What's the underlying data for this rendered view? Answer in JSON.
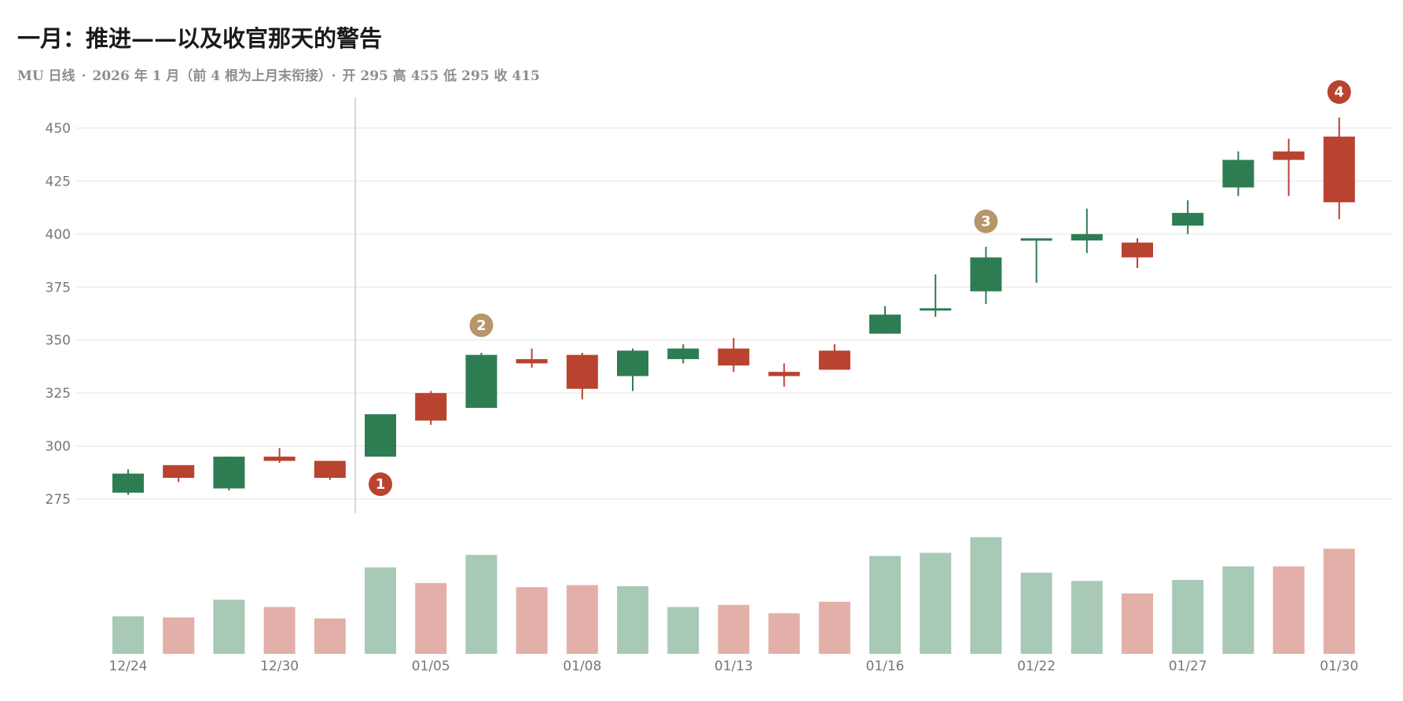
{
  "header": {
    "title": "一月：推进——以及收官那天的警告",
    "subtitle_parts": [
      "MU 日线",
      "2026 年 1 月（前 4 根为上月末衔接）",
      "开 295 高 455 低 295 收 415"
    ],
    "separator": "·"
  },
  "colors": {
    "up": "#2e7d52",
    "down": "#b8432f",
    "up_volume": "#a7c9b6",
    "down_volume": "#e2b0a8",
    "marker_red": "#b8432f",
    "marker_tan": "#b8956a",
    "grid": "#e3e3e3",
    "axis_text": "#777777",
    "divider": "#d6d6d6"
  },
  "chart_data": {
    "type": "candlestick",
    "y_ticks": [
      275,
      300,
      325,
      350,
      375,
      400,
      425,
      450
    ],
    "ylim": [
      270,
      463
    ],
    "x_tick_labels": [
      {
        "index": 0,
        "label": "12/24"
      },
      {
        "index": 3,
        "label": "12/30"
      },
      {
        "index": 6,
        "label": "01/05"
      },
      {
        "index": 9,
        "label": "01/08"
      },
      {
        "index": 12,
        "label": "01/13"
      },
      {
        "index": 15,
        "label": "01/16"
      },
      {
        "index": 18,
        "label": "01/22"
      },
      {
        "index": 21,
        "label": "01/27"
      },
      {
        "index": 24,
        "label": "01/30"
      }
    ],
    "divider_after_index": 4,
    "candles": [
      {
        "open": 278,
        "high": 289,
        "low": 277,
        "close": 287,
        "volume": 18
      },
      {
        "open": 291,
        "high": 291,
        "low": 283,
        "close": 285,
        "volume": 17.5
      },
      {
        "open": 280,
        "high": 295,
        "low": 279,
        "close": 295,
        "volume": 26
      },
      {
        "open": 295,
        "high": 299,
        "low": 292,
        "close": 293,
        "volume": 22.5
      },
      {
        "open": 293,
        "high": 293,
        "low": 284,
        "close": 285,
        "volume": 17
      },
      {
        "open": 295,
        "high": 315,
        "low": 295,
        "close": 315,
        "volume": 41.5
      },
      {
        "open": 325,
        "high": 326,
        "low": 310,
        "close": 312,
        "volume": 34
      },
      {
        "open": 318,
        "high": 344,
        "low": 318,
        "close": 343,
        "volume": 47.5
      },
      {
        "open": 341,
        "high": 346,
        "low": 337,
        "close": 339,
        "volume": 32
      },
      {
        "open": 343,
        "high": 344,
        "low": 322,
        "close": 327,
        "volume": 33
      },
      {
        "open": 333,
        "high": 346,
        "low": 326,
        "close": 345,
        "volume": 32.5
      },
      {
        "open": 341,
        "high": 348,
        "low": 339,
        "close": 346,
        "volume": 22.5
      },
      {
        "open": 346,
        "high": 351,
        "low": 335,
        "close": 338,
        "volume": 23.5
      },
      {
        "open": 335,
        "high": 339,
        "low": 328,
        "close": 333,
        "volume": 19.5
      },
      {
        "open": 345,
        "high": 348,
        "low": 336,
        "close": 336,
        "volume": 25
      },
      {
        "open": 353,
        "high": 366,
        "low": 353,
        "close": 362,
        "volume": 47
      },
      {
        "open": 365,
        "high": 381,
        "low": 361,
        "close": 365,
        "volume": 48.5
      },
      {
        "open": 373,
        "high": 394,
        "low": 367,
        "close": 389,
        "volume": 56
      },
      {
        "open": 397,
        "high": 398,
        "low": 377,
        "close": 398,
        "volume": 39
      },
      {
        "open": 397,
        "high": 412,
        "low": 391,
        "close": 400,
        "volume": 35
      },
      {
        "open": 396,
        "high": 398,
        "low": 384,
        "close": 389,
        "volume": 29
      },
      {
        "open": 404,
        "high": 416,
        "low": 400,
        "close": 410,
        "volume": 35.5
      },
      {
        "open": 422,
        "high": 439,
        "low": 418,
        "close": 435,
        "volume": 42
      },
      {
        "open": 439,
        "high": 445,
        "low": 418,
        "close": 435,
        "volume": 42
      },
      {
        "open": 446,
        "high": 455,
        "low": 407,
        "close": 415,
        "volume": 50.5
      }
    ],
    "annotations": [
      {
        "label": "1",
        "index": 5,
        "value": 282,
        "color": "red"
      },
      {
        "label": "2",
        "index": 7,
        "value": 357,
        "color": "tan"
      },
      {
        "label": "3",
        "index": 17,
        "value": 406,
        "color": "tan"
      },
      {
        "label": "4",
        "index": 24,
        "value": 467,
        "color": "red"
      }
    ]
  }
}
